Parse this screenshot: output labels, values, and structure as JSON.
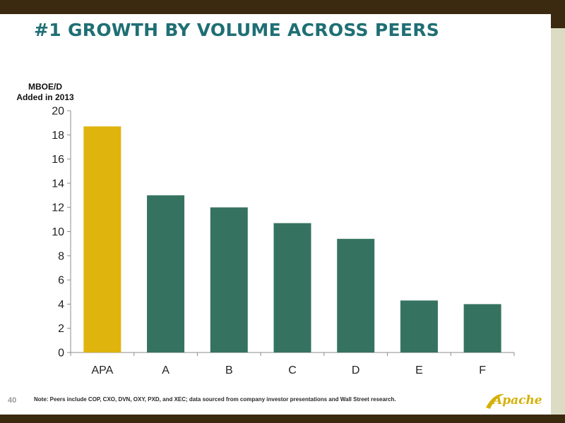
{
  "slide": {
    "title": "#1 GROWTH BY VOLUME ACROSS PEERS",
    "unit_line1": "MBOE/D",
    "unit_line2": "Added in 2013",
    "page_number": "40",
    "note": "Note: Peers include COP, CXO, DVN, OXY, PXD, and XEC; data sourced from company investor presentations and Wall Street research.",
    "logo_text": "Apache",
    "colors": {
      "title": "#1f6f74",
      "frame": "#3b2a10",
      "side_band": "#dcdcc4",
      "logo": "#d4b106"
    }
  },
  "chart_data": {
    "type": "bar",
    "categories": [
      "APA",
      "A",
      "B",
      "C",
      "D",
      "E",
      "F"
    ],
    "values": [
      18.7,
      13.0,
      12.0,
      10.7,
      9.4,
      4.3,
      4.0
    ],
    "title": "",
    "xlabel": "",
    "ylabel": "MBOE/D Added in 2013",
    "ylim": [
      0,
      20
    ],
    "yticks": [
      0,
      2,
      4,
      6,
      8,
      10,
      12,
      14,
      16,
      18,
      20
    ],
    "grid": false,
    "legend": "none",
    "highlight_color": "#dfb40d",
    "bar_color": "#357360"
  }
}
